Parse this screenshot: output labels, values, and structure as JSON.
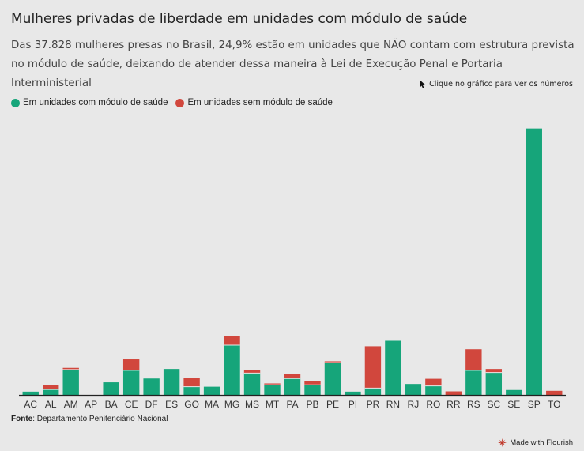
{
  "header": {
    "title": "Mulheres privadas de liberdade em unidades com módulo de saúde",
    "subtitle": "Das 37.828 mulheres presas no Brasil, 24,9% estão em unidades que NÃO contam com estrutura prevista no módulo de saúde, deixando de atender dessa maneira à Lei de Execução Penal e Portaria Interministerial",
    "hint": "Clique no gráfico para ver os números"
  },
  "legend": {
    "items": [
      {
        "label": "Em unidades com módulo de saúde",
        "color": "#16a57a"
      },
      {
        "label": "Em unidades sem módulo de saúde",
        "color": "#d1473d"
      }
    ]
  },
  "footer": {
    "source_label": "Fonte",
    "source_text": ": Departamento Penitenciário Nacional",
    "credit": "Made with Flourish"
  },
  "chart_data": {
    "type": "bar",
    "stacked": true,
    "categories": [
      "AC",
      "AL",
      "AM",
      "AP",
      "BA",
      "CE",
      "DF",
      "ES",
      "GO",
      "MA",
      "MG",
      "MS",
      "MT",
      "PA",
      "PB",
      "PE",
      "PI",
      "PR",
      "RN",
      "RJ",
      "RO",
      "RR",
      "RS",
      "SC",
      "SE",
      "SP",
      "TO"
    ],
    "series": [
      {
        "name": "Em unidades com módulo de saúde",
        "color": "#16a57a",
        "values": [
          120,
          200,
          930,
          0,
          460,
          900,
          600,
          950,
          300,
          300,
          1820,
          800,
          370,
          600,
          370,
          1180,
          120,
          250,
          1980,
          400,
          330,
          0,
          900,
          820,
          180,
          9750,
          0
        ]
      },
      {
        "name": "Em unidades sem módulo de saúde",
        "color": "#d1473d",
        "values": [
          0,
          170,
          60,
          0,
          0,
          400,
          0,
          0,
          320,
          0,
          320,
          120,
          50,
          160,
          130,
          50,
          0,
          1530,
          0,
          0,
          260,
          130,
          770,
          130,
          0,
          0,
          150
        ]
      }
    ],
    "ylim": [
      0,
      10000
    ],
    "grid": false,
    "legend_position": "top-left"
  }
}
